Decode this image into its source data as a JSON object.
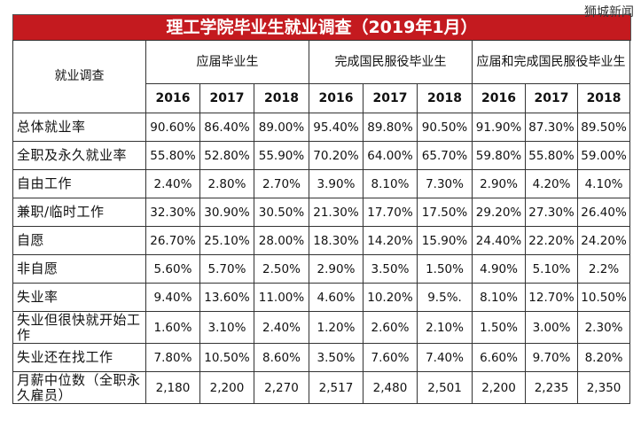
{
  "watermark": "狮城新闻",
  "title": "理工学院毕业生就业调查（2019年1月）",
  "corner_label": "就业调查",
  "groups": [
    "应届毕业生",
    "完成国民服役毕业生",
    "应届和完成国民服役毕业生"
  ],
  "years": [
    "2016",
    "2017",
    "2018",
    "2016",
    "2017",
    "2018",
    "2016",
    "2017",
    "2018"
  ],
  "rows": [
    {
      "label": "总体就业率",
      "values": [
        "90.60%",
        "86.40%",
        "89.00%",
        "95.40%",
        "89.80%",
        "90.50%",
        "91.90%",
        "87.30%",
        "89.50%"
      ]
    },
    {
      "label": "全职及永久就业率",
      "values": [
        "55.80%",
        "52.80%",
        "55.90%",
        "70.20%",
        "64.00%",
        "65.70%",
        "59.80%",
        "55.80%",
        "59.00%"
      ]
    },
    {
      "label": "自由工作",
      "values": [
        "2.40%",
        "2.80%",
        "2.70%",
        "3.90%",
        "8.10%",
        "7.30%",
        "2.90%",
        "4.20%",
        "4.10%"
      ]
    },
    {
      "label": "兼职/临时工作",
      "values": [
        "32.30%",
        "30.90%",
        "30.50%",
        "21.30%",
        "17.70%",
        "17.50%",
        "29.20%",
        "27.30%",
        "26.40%"
      ]
    },
    {
      "label": "自愿",
      "values": [
        "26.70%",
        "25.10%",
        "28.00%",
        "18.30%",
        "14.20%",
        "15.90%",
        "24.40%",
        "22.20%",
        "24.20%"
      ]
    },
    {
      "label": "非自愿",
      "values": [
        "5.60%",
        "5.70%",
        "2.50%",
        "2.90%",
        "3.50%",
        "1.50%",
        "4.90%",
        "5.10%",
        "2.2%"
      ]
    },
    {
      "label": "失业率",
      "values": [
        "9.40%",
        "13.60%",
        "11.00%",
        "4.60%",
        "10.20%",
        "9.5%.",
        "8.10%",
        "12.70%",
        "10.50%"
      ]
    },
    {
      "label": "失业但很快就开始工作",
      "values": [
        "1.60%",
        "3.10%",
        "2.40%",
        "1.20%",
        "2.60%",
        "2.10%",
        "1.50%",
        "3.00%",
        "2.30%"
      ]
    },
    {
      "label": "失业还在找工作",
      "values": [
        "7.80%",
        "10.50%",
        "8.60%",
        "3.50%",
        "7.60%",
        "7.40%",
        "6.60%",
        "9.70%",
        "8.20%"
      ]
    },
    {
      "label": "月薪中位数（全职永久雇员）",
      "values": [
        "2,180",
        "2,200",
        "2,270",
        "2,517",
        "2,480",
        "2,501",
        "2,200",
        "2,235",
        "2,350"
      ]
    }
  ],
  "colors": {
    "title_bg": "#c41a1f",
    "border": "#333333"
  }
}
